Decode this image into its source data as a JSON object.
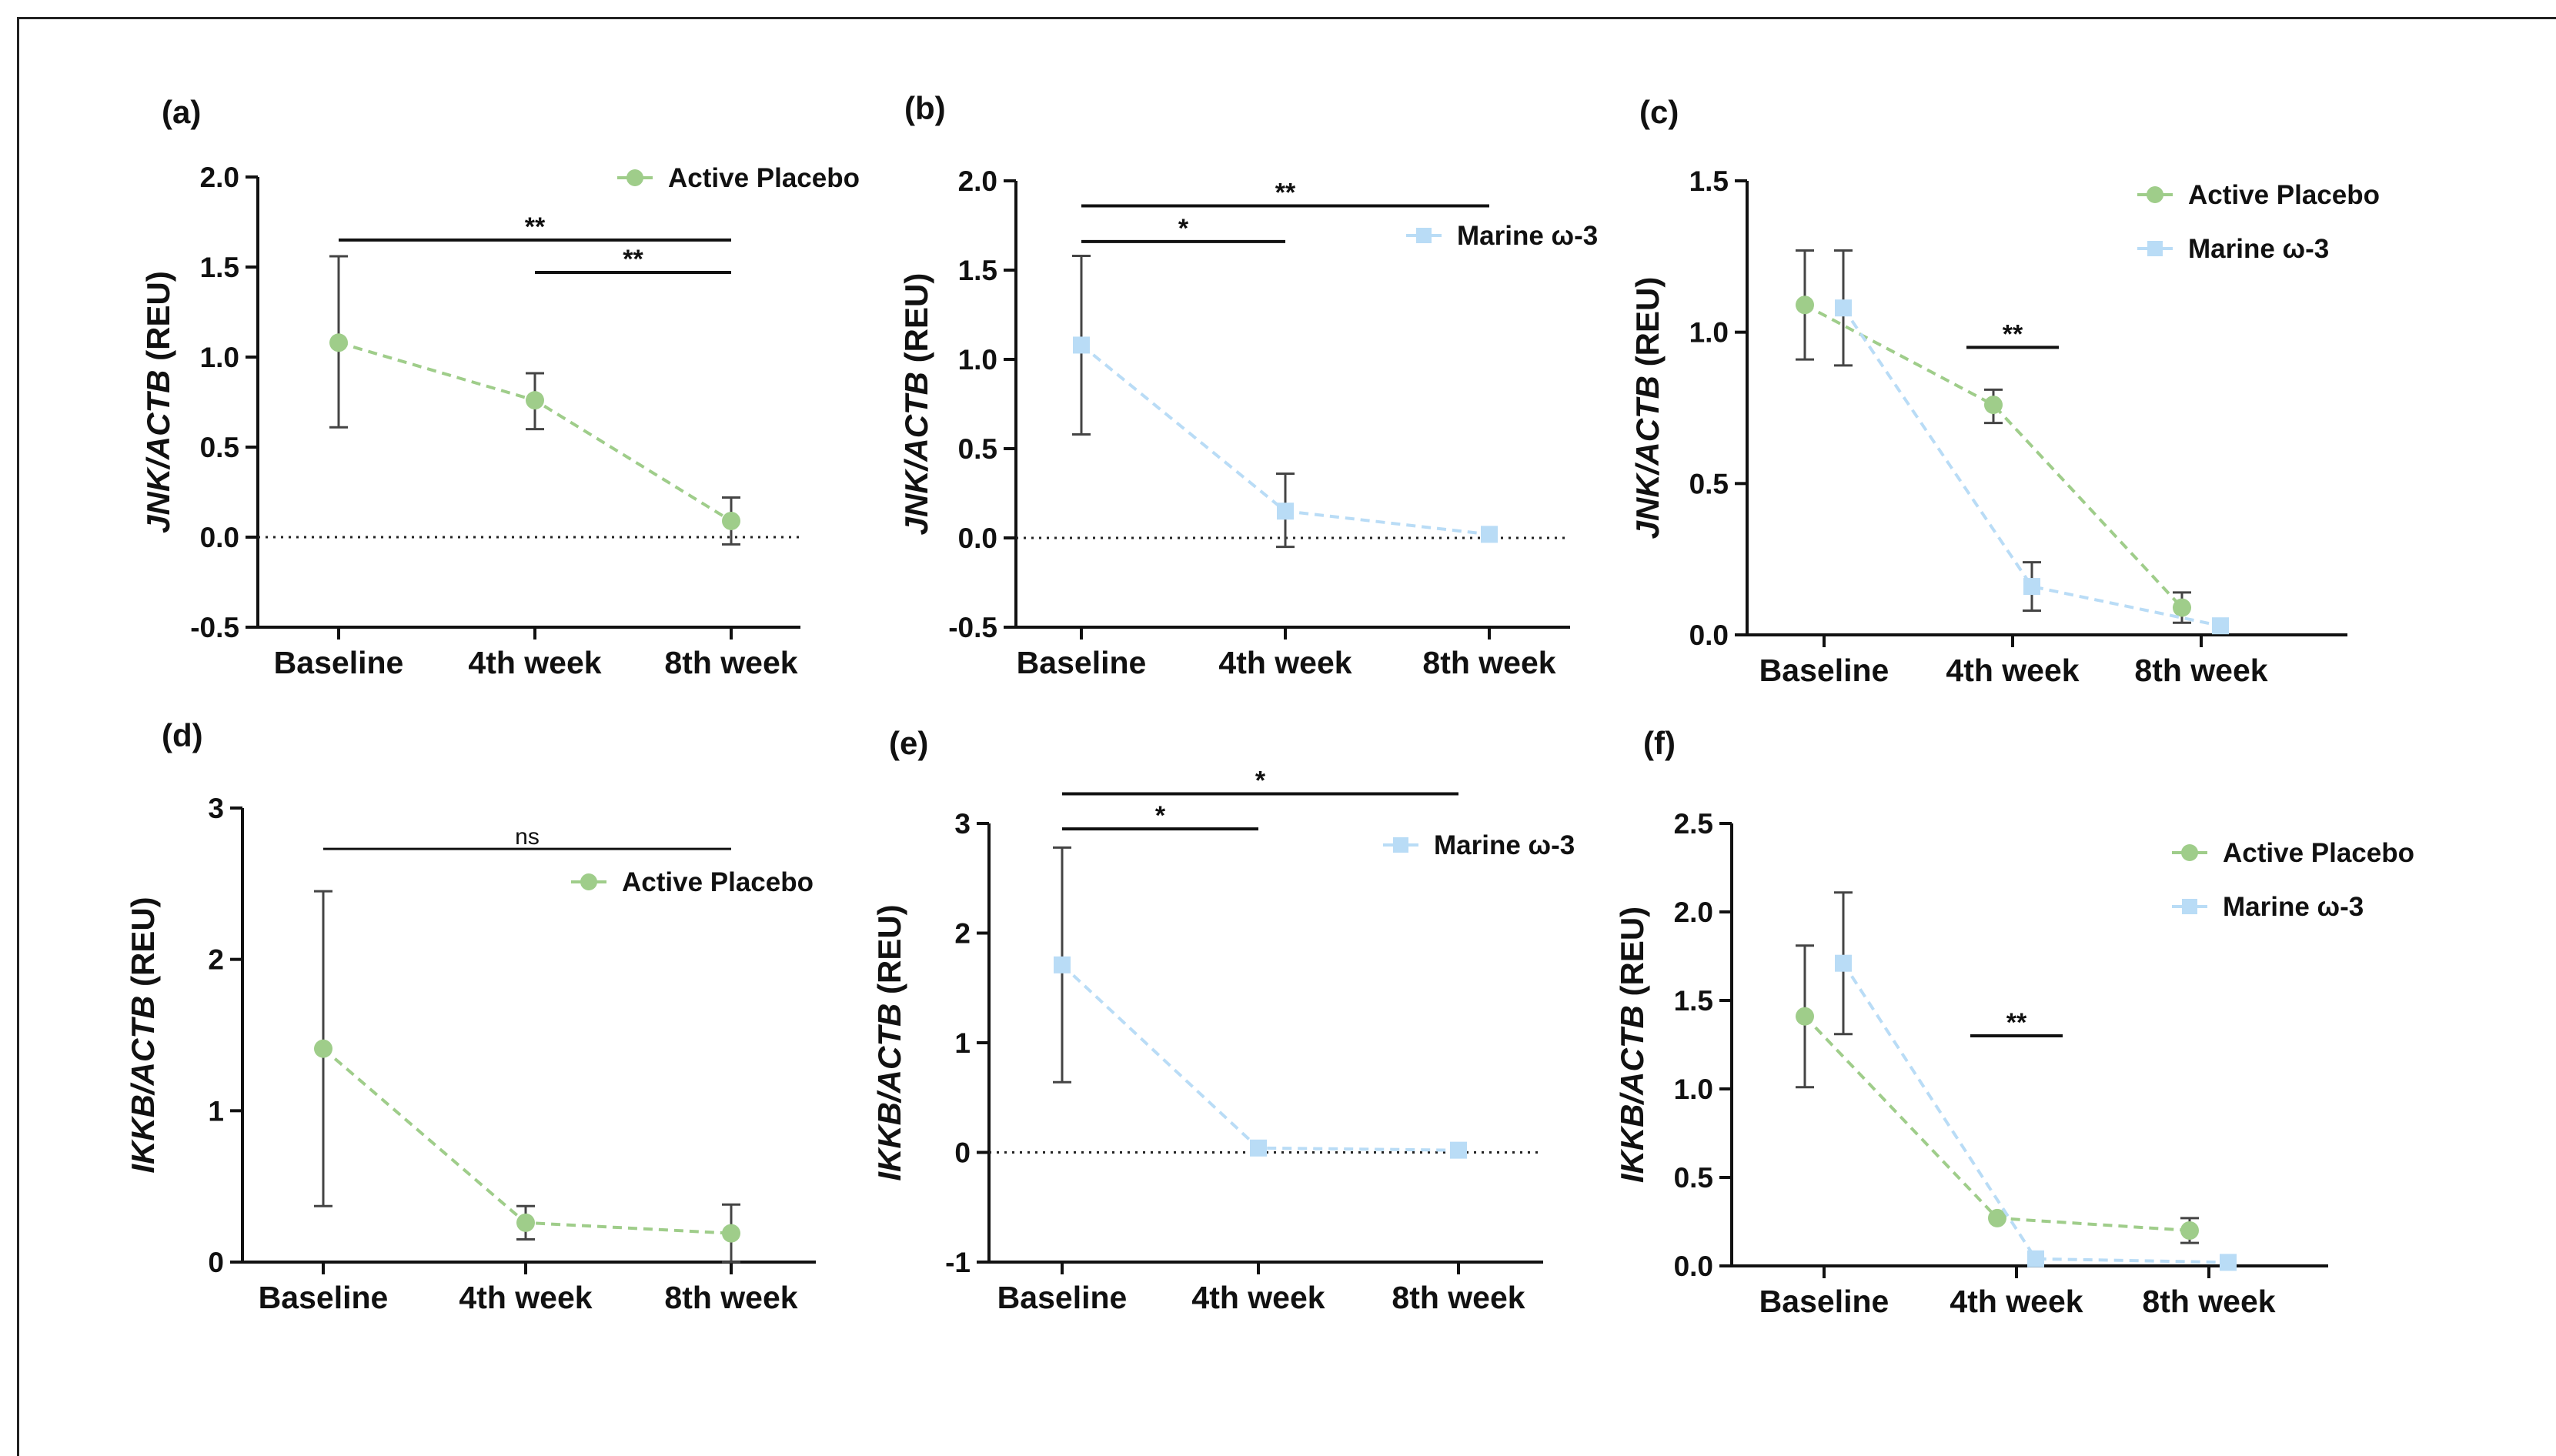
{
  "colors": {
    "placebo": "#9fcd8a",
    "marine": "#b9dcf6",
    "axis": "#111111"
  },
  "chart_data": [
    {
      "type": "line",
      "panel": "(a)",
      "ylabel": "JNK/ACTB (REU)",
      "ylabel_italic": "JNK/ACTB",
      "ylabel_unit": " (REU)",
      "categories": [
        "Baseline",
        "4th week",
        "8th week"
      ],
      "ylim": [
        -0.5,
        2.0
      ],
      "yticks": [
        -0.5,
        0.0,
        0.5,
        1.0,
        1.5,
        2.0
      ],
      "tick_labels": [
        "-0.5",
        "0.0",
        "0.5",
        "1.0",
        "1.5",
        "2.0"
      ],
      "zero_line": true,
      "legend_position": "top-right",
      "series": [
        {
          "name": "Active Placebo",
          "marker": "circle",
          "color_key": "placebo",
          "values": [
            1.08,
            0.76,
            0.09
          ],
          "err_low": [
            0.61,
            0.6,
            -0.04
          ],
          "err_high": [
            1.56,
            0.91,
            0.22
          ]
        }
      ],
      "significance": [
        {
          "from": 0,
          "to": 2,
          "label": "**",
          "y": 1.65
        },
        {
          "from": 1,
          "to": 2,
          "label": "**",
          "y": 1.47
        }
      ]
    },
    {
      "type": "line",
      "panel": "(b)",
      "ylabel": "JNK/ACTB (REU)",
      "ylabel_italic": "JNK/ACTB",
      "ylabel_unit": " (REU)",
      "categories": [
        "Baseline",
        "4th week",
        "8th week"
      ],
      "ylim": [
        -0.5,
        2.0
      ],
      "yticks": [
        -0.5,
        0.0,
        0.5,
        1.0,
        1.5,
        2.0
      ],
      "tick_labels": [
        "-0.5",
        "0.0",
        "0.5",
        "1.0",
        "1.5",
        "2.0"
      ],
      "zero_line": true,
      "legend_position": "top-right",
      "series": [
        {
          "name": "Marine ω-3",
          "marker": "square",
          "color_key": "marine",
          "values": [
            1.08,
            0.15,
            0.02
          ],
          "err_low": [
            0.58,
            -0.05,
            0.02
          ],
          "err_high": [
            1.58,
            0.36,
            0.02
          ]
        }
      ],
      "significance": [
        {
          "from": 0,
          "to": 2,
          "label": "**",
          "y": 1.86
        },
        {
          "from": 0,
          "to": 1,
          "label": "*",
          "y": 1.66
        }
      ]
    },
    {
      "type": "line",
      "panel": "(c)",
      "ylabel": "JNK/ACTB (REU)",
      "ylabel_italic": "JNK/ACTB",
      "ylabel_unit": " (REU)",
      "categories": [
        "Baseline",
        "4th week",
        "8th week"
      ],
      "ylim": [
        0,
        1.5
      ],
      "yticks": [
        0.0,
        0.5,
        1.0,
        1.5
      ],
      "tick_labels": [
        "0.0",
        "0.5",
        "1.0",
        "1.5"
      ],
      "zero_line": false,
      "legend_position": "top-right",
      "series": [
        {
          "name": "Active Placebo",
          "marker": "circle",
          "color_key": "placebo",
          "values": [
            1.09,
            0.76,
            0.09
          ],
          "err_low": [
            0.91,
            0.7,
            0.04
          ],
          "err_high": [
            1.27,
            0.81,
            0.14
          ]
        },
        {
          "name": "Marine ω-3",
          "marker": "square",
          "color_key": "marine",
          "values": [
            1.08,
            0.16,
            0.03
          ],
          "err_low": [
            0.89,
            0.08,
            0.03
          ],
          "err_high": [
            1.27,
            0.24,
            0.03
          ]
        }
      ],
      "significance": [
        {
          "from": 1,
          "to": 1,
          "label": "**",
          "y": 0.95
        }
      ]
    },
    {
      "type": "line",
      "panel": "(d)",
      "ylabel": "IKKB/ACTB (REU)",
      "ylabel_italic": "IKKB/ACTB",
      "ylabel_unit": " (REU)",
      "categories": [
        "Baseline",
        "4th week",
        "8th week"
      ],
      "ylim": [
        0,
        3
      ],
      "yticks": [
        0,
        1,
        2,
        3
      ],
      "tick_labels": [
        "0",
        "1",
        "2",
        "3"
      ],
      "zero_line": false,
      "legend_position": "top-right",
      "series": [
        {
          "name": "Active Placebo",
          "marker": "circle",
          "color_key": "placebo",
          "values": [
            1.41,
            0.26,
            0.19
          ],
          "err_low": [
            0.37,
            0.15,
            0.0
          ],
          "err_high": [
            2.45,
            0.37,
            0.38
          ]
        }
      ],
      "significance": [
        {
          "from": 0,
          "to": 2,
          "label": "ns",
          "y": 2.73
        }
      ]
    },
    {
      "type": "line",
      "panel": "(e)",
      "ylabel": "IKKB/ACTB (REU)",
      "ylabel_italic": "IKKB/ACTB",
      "ylabel_unit": " (REU)",
      "categories": [
        "Baseline",
        "4th week",
        "8th week"
      ],
      "ylim": [
        -1,
        3
      ],
      "yticks": [
        -1,
        0,
        1,
        2,
        3
      ],
      "tick_labels": [
        "-1",
        "0",
        "1",
        "2",
        "3"
      ],
      "zero_line": true,
      "legend_position": "top-right",
      "series": [
        {
          "name": "Marine ω-3",
          "marker": "square",
          "color_key": "marine",
          "values": [
            1.71,
            0.04,
            0.02
          ],
          "err_low": [
            0.64,
            0.04,
            0.02
          ],
          "err_high": [
            2.78,
            0.04,
            0.02
          ]
        }
      ],
      "significance": [
        {
          "from": 0,
          "to": 2,
          "label": "*",
          "y": 3.27
        },
        {
          "from": 0,
          "to": 1,
          "label": "*",
          "y": 2.95
        }
      ]
    },
    {
      "type": "line",
      "panel": "(f)",
      "ylabel": "IKKB/ACTB (REU)",
      "ylabel_italic": "IKKB/ACTB",
      "ylabel_unit": " (REU)",
      "categories": [
        "Baseline",
        "4th week",
        "8th week"
      ],
      "ylim": [
        0,
        2.5
      ],
      "yticks": [
        0.0,
        0.5,
        1.0,
        1.5,
        2.0,
        2.5
      ],
      "tick_labels": [
        "0.0",
        "0.5",
        "1.0",
        "1.5",
        "2.0",
        "2.5"
      ],
      "zero_line": false,
      "legend_position": "top-right",
      "series": [
        {
          "name": "Active Placebo",
          "marker": "circle",
          "color_key": "placebo",
          "values": [
            1.41,
            0.27,
            0.2
          ],
          "err_low": [
            1.01,
            0.27,
            0.13
          ],
          "err_high": [
            1.81,
            0.27,
            0.27
          ]
        },
        {
          "name": "Marine ω-3",
          "marker": "square",
          "color_key": "marine",
          "values": [
            1.71,
            0.04,
            0.02
          ],
          "err_low": [
            1.31,
            0.04,
            0.02
          ],
          "err_high": [
            2.11,
            0.04,
            0.02
          ]
        }
      ],
      "significance": [
        {
          "from": 1,
          "to": 1,
          "label": "**",
          "y": 1.3
        }
      ]
    }
  ]
}
